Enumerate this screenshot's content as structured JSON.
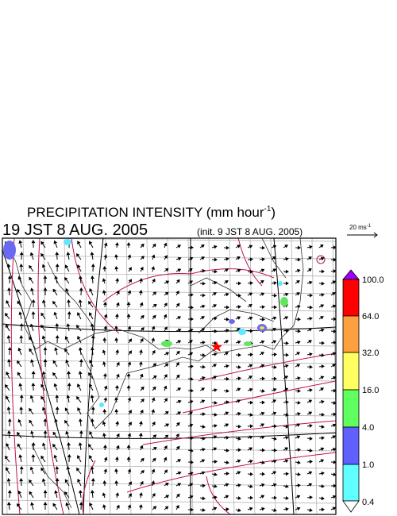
{
  "header": {
    "title": "PRECIPITATION INTENSITY (mm hour",
    "title_exponent": "-1",
    "title_close": ")",
    "valid_time": "19 JST 8 AUG. 2005",
    "init_time": "(init. 9 JST 8 AUG. 2005)"
  },
  "wind_legend": {
    "label": "20 ms",
    "exponent": "-1"
  },
  "colorbar": {
    "labels": [
      "100.0",
      "64.0",
      "32.0",
      "16.0",
      "4.0",
      "1.0",
      "0.4"
    ]
  }
}
